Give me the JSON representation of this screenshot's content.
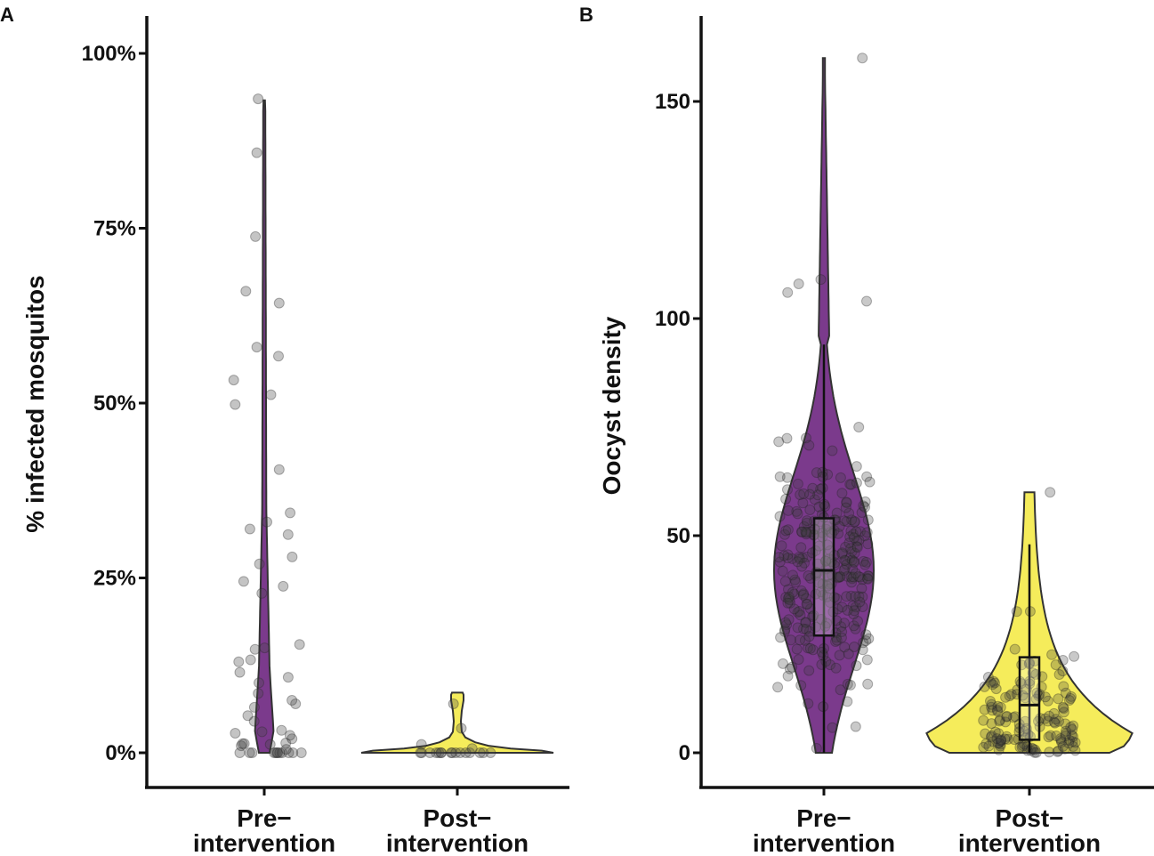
{
  "chart_data": [
    {
      "panel": "A",
      "type": "violin",
      "title": "",
      "xlabel": "",
      "ylabel": "% infected mosquitos",
      "categories": [
        "Pre−\nintervention",
        "Post−\nintervention"
      ],
      "yticks": [
        0,
        25,
        50,
        75,
        100
      ],
      "ytick_labels": [
        "0%",
        "25%",
        "50%",
        "75%",
        "100%"
      ],
      "ylim": [
        -5,
        105
      ],
      "colors": [
        "#7b3a8c",
        "#f5ec5b"
      ],
      "series": [
        {
          "name": "Pre−intervention",
          "color": "#7b3a8c",
          "points": [
            0,
            0,
            0,
            0,
            0,
            0,
            0,
            0,
            0,
            0,
            0,
            0,
            0.5,
            1.0,
            1.2,
            1.3,
            1.3,
            1.4,
            2.0,
            2.5,
            2.8,
            3.0,
            3.2,
            4.5,
            5.3,
            6.5,
            7.0,
            7.5,
            8.5,
            10.0,
            10.8,
            11.5,
            13.0,
            13.3,
            14.8,
            15.0,
            15.5,
            22.8,
            23.8,
            24.5,
            27.0,
            28.0,
            31.2,
            32.0,
            33.0,
            34.3,
            40.5,
            49.8,
            51.2,
            53.3,
            56.7,
            58.0,
            64.3,
            66.0,
            73.8,
            85.8,
            93.5
          ],
          "violin_max": 93.3
        },
        {
          "name": "Post−intervention",
          "color": "#f5ec5b",
          "points": [
            0,
            0,
            0,
            0,
            0,
            0,
            0,
            0,
            0,
            0,
            0,
            0,
            0,
            0,
            0,
            0,
            0.6,
            1.2,
            3.5,
            7.0
          ],
          "violin_max": 8.6
        }
      ]
    },
    {
      "panel": "B",
      "type": "violin",
      "title": "",
      "xlabel": "",
      "ylabel": "Oocyst density",
      "categories": [
        "Pre−\nintervention",
        "Post−\nintervention"
      ],
      "yticks": [
        0,
        50,
        100,
        150
      ],
      "ytick_labels": [
        "0",
        "50",
        "100",
        "150"
      ],
      "ylim": [
        -8,
        170
      ],
      "colors": [
        "#7b3a8c",
        "#f5ec5b"
      ],
      "series": [
        {
          "name": "Pre−intervention",
          "color": "#7b3a8c",
          "box": {
            "min": 0,
            "q1": 27,
            "median": 42,
            "q3": 54,
            "max": 94
          },
          "violin_max": 160,
          "outliers": [
            104,
            106,
            108,
            109,
            160
          ],
          "n_points": 300
        },
        {
          "name": "Post−intervention",
          "color": "#f5ec5b",
          "box": {
            "min": 0,
            "q1": 3,
            "median": 11,
            "q3": 22,
            "max": 48
          },
          "violin_max": 60,
          "outliers": [
            60
          ],
          "n_points": 150
        }
      ]
    }
  ]
}
